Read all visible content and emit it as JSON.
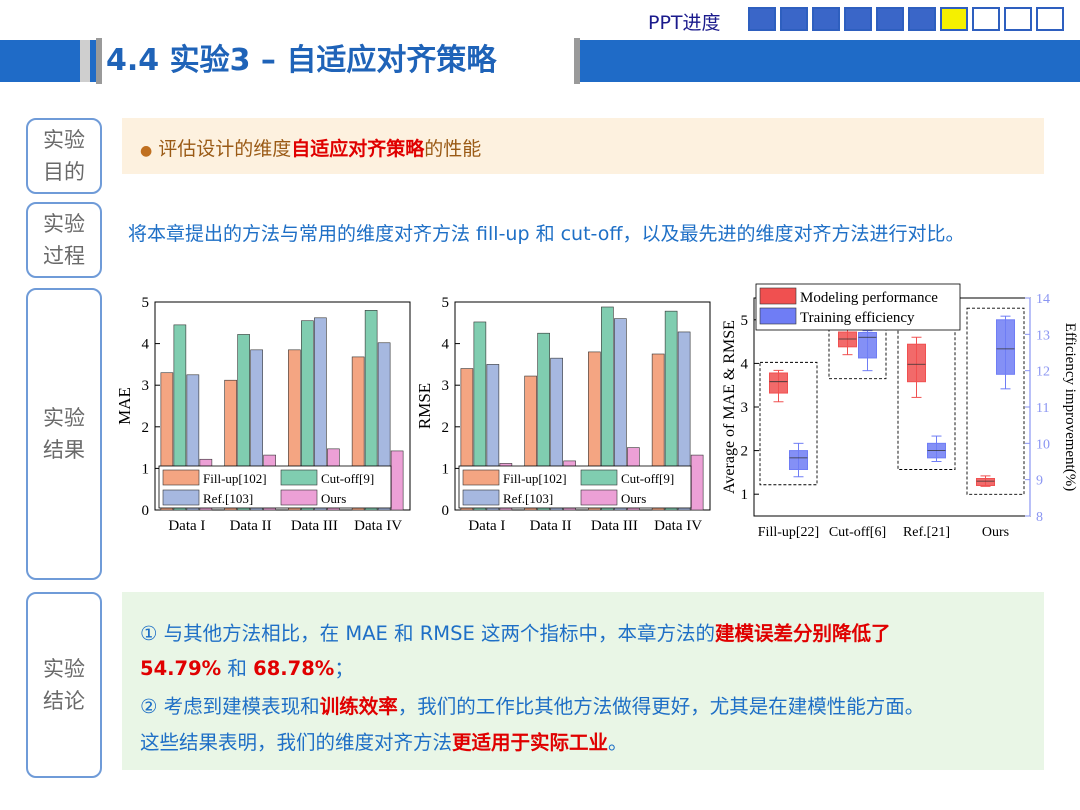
{
  "header": {
    "progress_label": "PPT进度",
    "progress_boxes": [
      "done",
      "done",
      "done",
      "done",
      "done",
      "done",
      "current",
      "todo",
      "todo",
      "todo"
    ],
    "title": "4.4 实验3 – 自适应对齐策略"
  },
  "colors": {
    "accent": "#1f6bc7",
    "highlight": "#e00000",
    "purpose_bg": "#fdf1df",
    "conclusion_bg": "#e9f6e6"
  },
  "sections": {
    "purpose": {
      "label_1": "实验",
      "label_2": "目的",
      "bullet": "●",
      "text_pre": "评估设计的维度",
      "text_highlight": "自适应对齐策略",
      "text_post": "的性能"
    },
    "process": {
      "label_1": "实验",
      "label_2": "过程",
      "text": "将本章提出的方法与常用的维度对齐方法 fill-up 和 cut-off，以及最先进的维度对齐方法进行对比。"
    },
    "results": {
      "label_1": "实验",
      "label_2": "结果"
    },
    "conclusion": {
      "label_1": "实验",
      "label_2": "结论",
      "line1_pre": "① 与其他方法相比，在 MAE 和 RMSE 这两个指标中，本章方法的",
      "line1_highlight": "建模误差分别降低了",
      "line2_highlight_a": "54.79%",
      "line2_mid": " 和 ",
      "line2_highlight_b": "68.78%",
      "line2_post": "；",
      "line3_pre": "② 考虑到建模表现和",
      "line3_highlight": "训练效率",
      "line3_post": "，我们的工作比其他方法做得更好，尤其是在建模性能方面。",
      "line4_pre": "这些结果表明，我们的维度对齐方法",
      "line4_highlight": "更适用于实际工业",
      "line4_post": "。"
    }
  },
  "chart_data": [
    {
      "type": "bar",
      "ylabel": "MAE",
      "ylim": [
        0,
        5
      ],
      "yticks": [
        "0",
        "1",
        "2",
        "3",
        "4",
        "5"
      ],
      "categories": [
        "Data I",
        "Data II",
        "Data III",
        "Data IV"
      ],
      "series": [
        {
          "name": "Fill-up[102]",
          "color": "#f4a582",
          "values": [
            3.3,
            3.12,
            3.85,
            3.68
          ]
        },
        {
          "name": "Cut-off[9]",
          "color": "#80cdb0",
          "values": [
            4.45,
            4.22,
            4.55,
            4.8
          ]
        },
        {
          "name": "Ref.[103]",
          "color": "#a6b8e0",
          "values": [
            3.25,
            3.85,
            4.62,
            4.02
          ]
        },
        {
          "name": "Ours",
          "color": "#eca0d6",
          "values": [
            1.22,
            1.32,
            1.47,
            1.42
          ]
        }
      ],
      "legend": "bottom-left"
    },
    {
      "type": "bar",
      "ylabel": "RMSE",
      "ylim": [
        0,
        5
      ],
      "yticks": [
        "0",
        "1",
        "2",
        "3",
        "4",
        "5"
      ],
      "categories": [
        "Data I",
        "Data II",
        "Data III",
        "Data IV"
      ],
      "series": [
        {
          "name": "Fill-up[102]",
          "color": "#f4a582",
          "values": [
            3.4,
            3.22,
            3.8,
            3.75
          ]
        },
        {
          "name": "Cut-off[9]",
          "color": "#80cdb0",
          "values": [
            4.52,
            4.25,
            4.88,
            4.78
          ]
        },
        {
          "name": "Ref.[103]",
          "color": "#a6b8e0",
          "values": [
            3.5,
            3.65,
            4.6,
            4.28
          ]
        },
        {
          "name": "Ours",
          "color": "#eca0d6",
          "values": [
            1.12,
            1.18,
            1.5,
            1.32
          ]
        }
      ],
      "legend": "bottom-left"
    },
    {
      "type": "box",
      "ylabel": "Average of MAE & RMSE",
      "y2label": "Efficiency improvement(%)",
      "ylim": [
        0.5,
        5.5
      ],
      "yticks": [
        "1",
        "2",
        "3",
        "4",
        "5"
      ],
      "y2lim": [
        8,
        14
      ],
      "y2ticks": [
        "8",
        "9",
        "10",
        "11",
        "12",
        "13",
        "14"
      ],
      "categories": [
        "Fill-up[22]",
        "Cut-off[6]",
        "Ref.[21]",
        "Ours"
      ],
      "series": [
        {
          "name": "Modeling performance",
          "color": "#f05050",
          "axis": "left",
          "boxes": [
            [
              3.12,
              3.32,
              3.58,
              3.78,
              3.84
            ],
            [
              4.2,
              4.38,
              4.56,
              4.72,
              4.82
            ],
            [
              3.22,
              3.58,
              3.98,
              4.44,
              4.6
            ],
            [
              1.18,
              1.2,
              1.3,
              1.36,
              1.42
            ]
          ]
        },
        {
          "name": "Training efficiency",
          "color": "#6f7df5",
          "axis": "right",
          "boxes": [
            [
              9.08,
              9.28,
              9.6,
              9.8,
              10.0
            ],
            [
              12.0,
              12.35,
              12.92,
              13.05,
              13.1
            ],
            [
              9.5,
              9.6,
              9.8,
              10.0,
              10.2
            ],
            [
              11.5,
              11.9,
              12.6,
              13.4,
              13.5
            ]
          ]
        }
      ],
      "legend": "top-left"
    }
  ]
}
